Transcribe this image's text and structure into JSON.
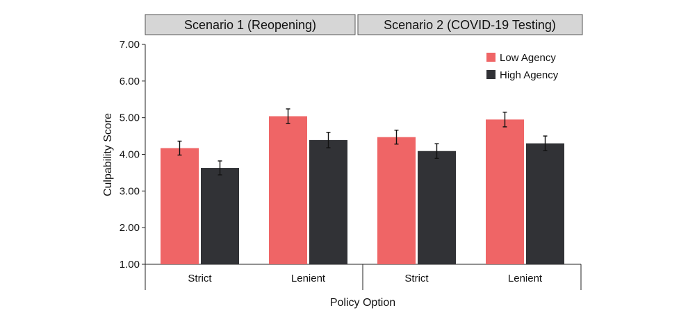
{
  "chart_data": {
    "type": "bar",
    "xlabel": "Policy Option",
    "ylabel": "Culpability Score",
    "ylim": [
      1.0,
      7.0
    ],
    "yticks": [
      "1.00",
      "2.00",
      "3.00",
      "4.00",
      "5.00",
      "6.00",
      "7.00"
    ],
    "legend_position": "top-right",
    "colors": {
      "Low Agency": "#ef6566",
      "High Agency": "#313236",
      "panel_header": "#d6d6d6"
    },
    "panels": [
      {
        "title": "Scenario 1 (Reopening)",
        "categories": [
          "Strict",
          "Lenient"
        ],
        "series": [
          {
            "name": "Low Agency",
            "values": [
              4.17,
              5.04
            ],
            "error": [
              0.19,
              0.2
            ]
          },
          {
            "name": "High Agency",
            "values": [
              3.63,
              4.39
            ],
            "error": [
              0.19,
              0.21
            ]
          }
        ]
      },
      {
        "title": "Scenario 2 (COVID-19 Testing)",
        "categories": [
          "Strict",
          "Lenient"
        ],
        "series": [
          {
            "name": "Low Agency",
            "values": [
              4.47,
              4.95
            ],
            "error": [
              0.19,
              0.2
            ]
          },
          {
            "name": "High Agency",
            "values": [
              4.09,
              4.3
            ],
            "error": [
              0.2,
              0.2
            ]
          }
        ]
      }
    ]
  }
}
